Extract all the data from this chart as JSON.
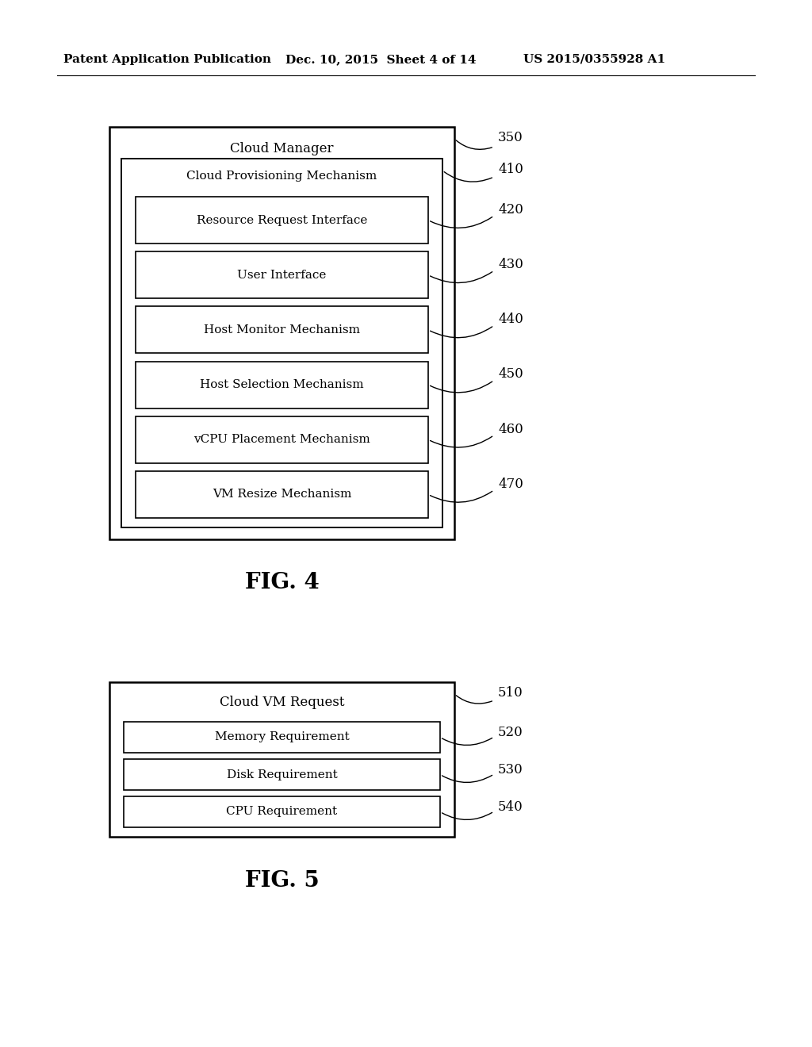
{
  "bg_color": "#ffffff",
  "header_text": "Patent Application Publication",
  "header_date": "Dec. 10, 2015  Sheet 4 of 14",
  "header_patent": "US 2015/0355928 A1",
  "fig4": {
    "title": "FIG. 4",
    "outer_label": "Cloud Manager",
    "outer_ref": "350",
    "inner_label": "Cloud Provisioning Mechanism",
    "inner_ref": "410",
    "sub_boxes": [
      {
        "label": "Resource Request Interface",
        "ref": "420"
      },
      {
        "label": "User Interface",
        "ref": "430"
      },
      {
        "label": "Host Monitor Mechanism",
        "ref": "440"
      },
      {
        "label": "Host Selection Mechanism",
        "ref": "450"
      },
      {
        "label": "vCPU Placement Mechanism",
        "ref": "460"
      },
      {
        "label": "VM Resize Mechanism",
        "ref": "470"
      }
    ]
  },
  "fig5": {
    "title": "FIG. 5",
    "outer_label": "Cloud VM Request",
    "outer_ref": "510",
    "sub_boxes": [
      {
        "label": "Memory Requirement",
        "ref": "520"
      },
      {
        "label": "Disk Requirement",
        "ref": "530"
      },
      {
        "label": "CPU Requirement",
        "ref": "540"
      }
    ]
  },
  "font_size_header": 11,
  "font_size_label": 12,
  "font_size_box": 11,
  "font_size_ref": 12,
  "font_size_fig": 20
}
